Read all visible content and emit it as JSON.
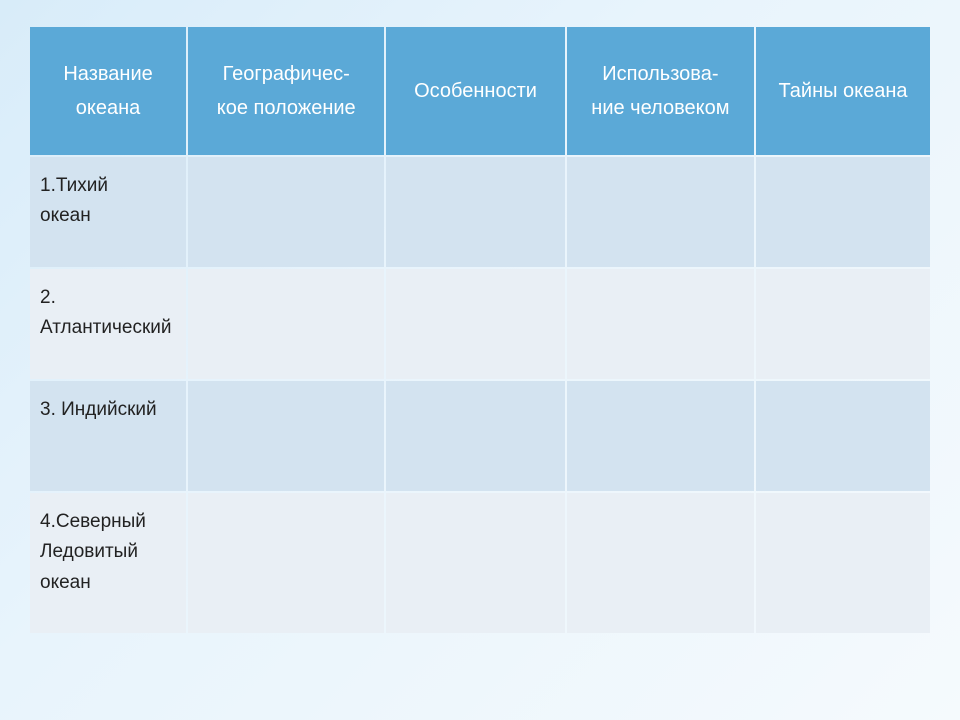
{
  "table": {
    "header_bg": "#5ba9d7",
    "header_text_color": "#ffffff",
    "row_odd_bg": "#d3e3f0",
    "row_even_bg": "#e9eff5",
    "cell_text_color": "#222222",
    "header_fontsize": 20,
    "cell_fontsize": 19,
    "columns": [
      "Название океана",
      "Географичес-\nкое положение",
      "Особенности",
      "Использова-\nние человеком",
      "Тайны океана"
    ],
    "column_widths_pct": [
      17.5,
      22,
      20,
      21,
      19.5
    ],
    "rows": [
      [
        "1.Тихий\n    океан",
        "",
        "",
        "",
        ""
      ],
      [
        "2. Атлантический",
        "",
        "",
        "",
        ""
      ],
      [
        "3. Индийский",
        "",
        "",
        "",
        ""
      ],
      [
        "4.Северный Ледовитый океан",
        "",
        "",
        "",
        ""
      ]
    ]
  },
  "background": {
    "gradient_from": "#d8ecf9",
    "gradient_mid": "#e8f4fc",
    "gradient_to": "#f5fafd"
  }
}
